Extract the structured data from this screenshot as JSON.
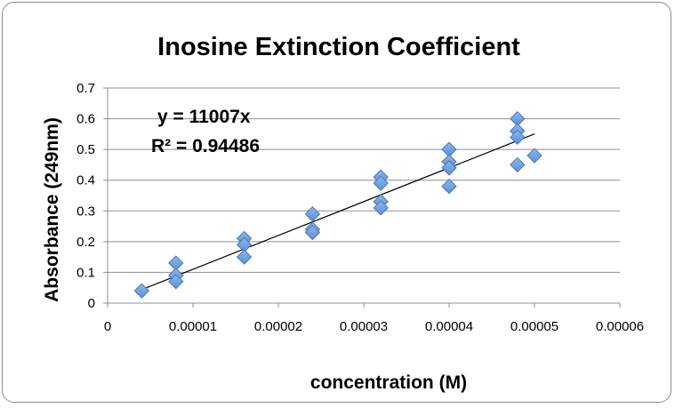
{
  "chart_data": {
    "type": "scatter",
    "title": "Inosine Extinction Coefficient",
    "xlabel": "concentration (M)",
    "ylabel": "Absorbance (249nm)",
    "xlim": [
      0,
      6e-05
    ],
    "ylim": [
      0,
      0.7
    ],
    "x_ticks": [
      "0",
      "0.00001",
      "0.00002",
      "0.00003",
      "0.00004",
      "0.00005",
      "0.00006"
    ],
    "y_ticks": [
      "0",
      "0.1",
      "0.2",
      "0.3",
      "0.4",
      "0.5",
      "0.6",
      "0.7"
    ],
    "grid": "horizontal",
    "series": [
      {
        "marker": "diamond",
        "color": "#5b8fd6",
        "points": [
          [
            4e-06,
            0.04
          ],
          [
            8e-06,
            0.13
          ],
          [
            8e-06,
            0.09
          ],
          [
            8e-06,
            0.07
          ],
          [
            1.6e-05,
            0.21
          ],
          [
            1.6e-05,
            0.19
          ],
          [
            1.6e-05,
            0.15
          ],
          [
            2.4e-05,
            0.29
          ],
          [
            2.4e-05,
            0.24
          ],
          [
            2.4e-05,
            0.23
          ],
          [
            3.2e-05,
            0.41
          ],
          [
            3.2e-05,
            0.39
          ],
          [
            3.2e-05,
            0.33
          ],
          [
            3.2e-05,
            0.31
          ],
          [
            4e-05,
            0.5
          ],
          [
            4e-05,
            0.46
          ],
          [
            4e-05,
            0.44
          ],
          [
            4e-05,
            0.38
          ],
          [
            4.8e-05,
            0.6
          ],
          [
            4.8e-05,
            0.56
          ],
          [
            4.8e-05,
            0.54
          ],
          [
            4.8e-05,
            0.45
          ],
          [
            5e-05,
            0.48
          ]
        ]
      }
    ],
    "trendline": {
      "type": "linear",
      "slope": 11007,
      "intercept": 0,
      "x_range": [
        4e-06,
        5e-05
      ],
      "color": "#000000",
      "equation": "y = 11007x",
      "r_squared": "R² = 0.94486"
    }
  }
}
